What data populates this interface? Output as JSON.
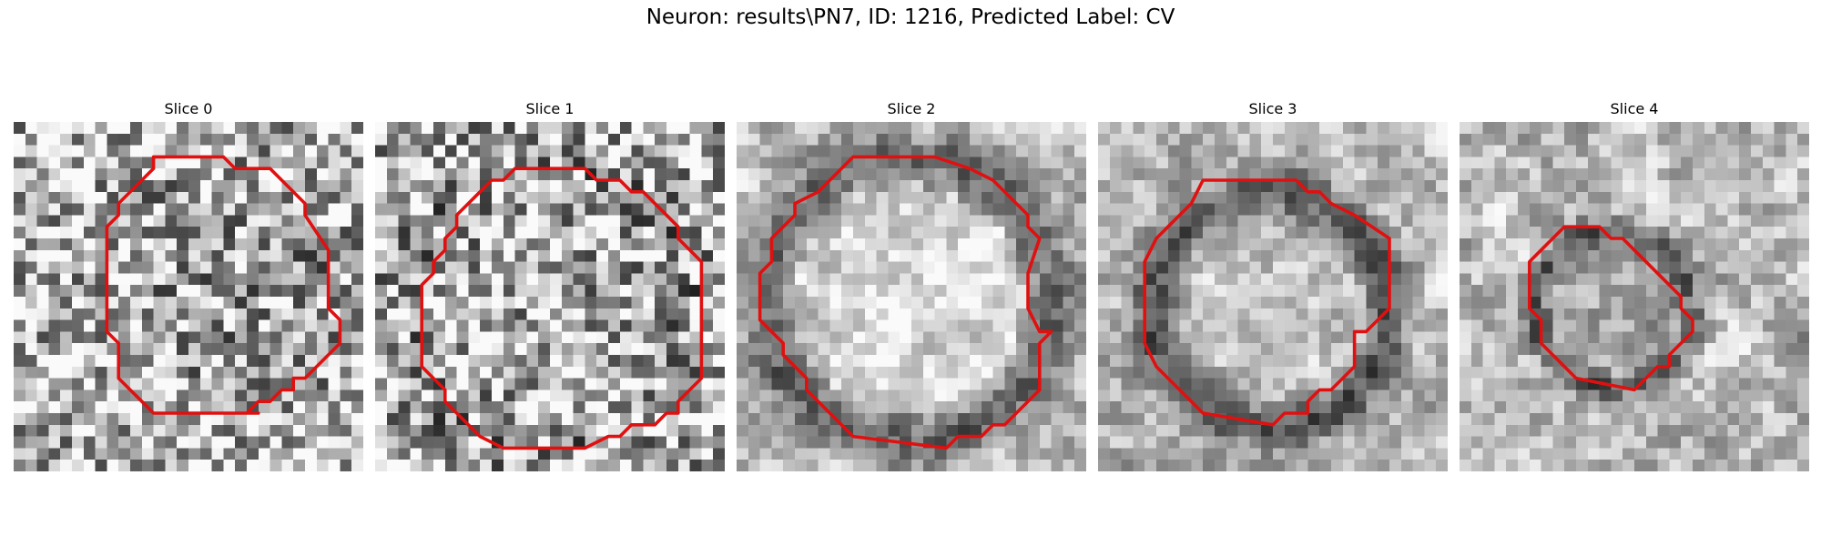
{
  "figure": {
    "title": "Neuron: results\\PN7, ID: 1216, Predicted Label: CV",
    "outline_color": "#e01010",
    "colormap": "gray"
  },
  "panels": [
    {
      "title": "Slice 0",
      "seed": 11,
      "contrast": 0.55,
      "ring_dark": 0.05,
      "center_dark": 0.1,
      "blur": 0
    },
    {
      "title": "Slice 1",
      "seed": 23,
      "contrast": 0.6,
      "ring_dark": 0.12,
      "center_dark": 0.0,
      "blur": 0
    },
    {
      "title": "Slice 2",
      "seed": 37,
      "contrast": 0.4,
      "ring_dark": 0.3,
      "center_dark": -0.15,
      "blur": 1
    },
    {
      "title": "Slice 3",
      "seed": 51,
      "contrast": 0.4,
      "ring_dark": 0.4,
      "center_dark": -0.05,
      "blur": 1
    },
    {
      "title": "Slice 4",
      "seed": 67,
      "contrast": 0.45,
      "ring_dark": 0.35,
      "center_dark": 0.05,
      "blur": 1
    }
  ]
}
